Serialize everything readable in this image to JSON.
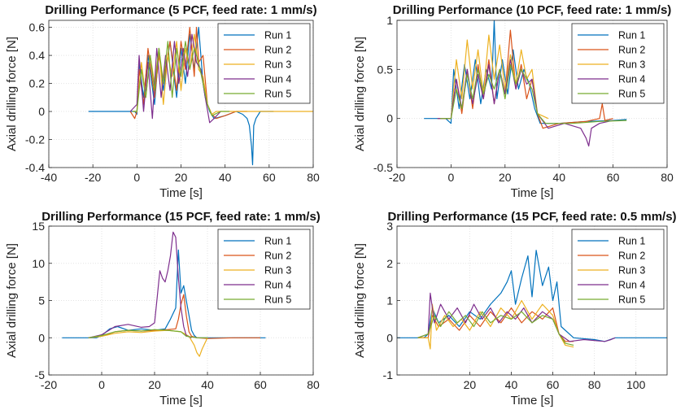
{
  "chart_data": [
    {
      "type": "line",
      "title": "Drilling Performance (5 PCF, feed rate: 1 mm/s)",
      "xlabel": "Time [s]",
      "ylabel": "Axial drilling force [N]",
      "xlim": [
        -40,
        80
      ],
      "ylim": [
        -0.4,
        0.65
      ],
      "xticks": [
        -40,
        -20,
        0,
        20,
        40,
        60,
        80
      ],
      "yticks": [
        -0.4,
        -0.2,
        0,
        0.2,
        0.4,
        0.6
      ],
      "ytick_labels": [
        "-0.4",
        "-0.2",
        "0",
        "0.2",
        "0.4",
        "0.6"
      ],
      "grid": true,
      "legend": "top-right",
      "series": [
        {
          "name": "Run 1",
          "color": "#0072BD",
          "x": [
            -22,
            -5,
            -1,
            0,
            1,
            3,
            5,
            8,
            10,
            12,
            15,
            18,
            20,
            22,
            24,
            26,
            28,
            30,
            31,
            33,
            35,
            40,
            45,
            48,
            50,
            51,
            52,
            52.5,
            53,
            54,
            56,
            60,
            62
          ],
          "y": [
            0,
            0,
            0,
            -0.02,
            0.35,
            0.1,
            0.4,
            0.05,
            0.45,
            0.15,
            0.5,
            0.1,
            0.45,
            0.2,
            0.55,
            0.3,
            0.6,
            0.2,
            0.1,
            0.0,
            -0.05,
            -0.03,
            0,
            -0.02,
            -0.05,
            -0.1,
            -0.25,
            -0.38,
            -0.1,
            -0.05,
            0,
            0,
            0
          ]
        },
        {
          "name": "Run 2",
          "color": "#D95319",
          "x": [
            -3,
            -1,
            0,
            1,
            3,
            5,
            8,
            10,
            12,
            15,
            18,
            20,
            22,
            24,
            26,
            27,
            28,
            30,
            32,
            34,
            36,
            40,
            45,
            50
          ],
          "y": [
            0,
            -0.05,
            0,
            0.3,
            0.05,
            0.45,
            0.1,
            0.4,
            0.2,
            0.5,
            0.15,
            0.5,
            0.3,
            0.6,
            0.25,
            0.6,
            0.35,
            0.4,
            0.05,
            -0.02,
            -0.05,
            -0.03,
            0,
            0
          ]
        },
        {
          "name": "Run 3",
          "color": "#EDB120",
          "x": [
            -2,
            0,
            2,
            4,
            6,
            8,
            10,
            12,
            14,
            16,
            18,
            20,
            22,
            24,
            26,
            28,
            30,
            32,
            34,
            36,
            40,
            50,
            60,
            70,
            80
          ],
          "y": [
            0,
            0,
            0.35,
            0.1,
            0.4,
            0.2,
            0.45,
            0.05,
            0.4,
            0.25,
            0.5,
            0.15,
            0.45,
            0.3,
            0.55,
            0.3,
            0.25,
            0.05,
            -0.02,
            0,
            0,
            0,
            0,
            0,
            0
          ]
        },
        {
          "name": "Run 4",
          "color": "#7E2F8E",
          "x": [
            -3,
            0,
            1,
            3,
            5,
            7,
            9,
            11,
            13,
            15,
            17,
            19,
            21,
            23,
            25,
            27,
            29,
            31,
            33,
            35,
            38
          ],
          "y": [
            0,
            0.05,
            0.4,
            0.0,
            0.35,
            -0.05,
            0.45,
            0.1,
            0.4,
            0.15,
            0.5,
            0.2,
            0.45,
            0.25,
            0.55,
            0.35,
            0.3,
            0.1,
            -0.08,
            -0.05,
            0
          ]
        },
        {
          "name": "Run 5",
          "color": "#77AC30",
          "x": [
            -2,
            0,
            2,
            4,
            6,
            8,
            10,
            12,
            14,
            16,
            18,
            20,
            22,
            24,
            26,
            28,
            30,
            32,
            34,
            38,
            42
          ],
          "y": [
            0,
            0,
            0.3,
            0.1,
            0.4,
            0.15,
            0.45,
            0.2,
            0.5,
            0.1,
            0.45,
            0.25,
            0.5,
            0.3,
            0.45,
            0.35,
            0.2,
            0.05,
            -0.03,
            0,
            0
          ]
        }
      ]
    },
    {
      "type": "line",
      "title": "Drilling Performance (10 PCF, feed rate: 1 mm/s)",
      "xlabel": "Time [s]",
      "ylabel": "Axial drilling force [N]",
      "xlim": [
        -20,
        80
      ],
      "ylim": [
        -0.5,
        1.0
      ],
      "xticks": [
        -20,
        0,
        20,
        40,
        60,
        80
      ],
      "yticks": [
        -0.5,
        0,
        0.5,
        1
      ],
      "ytick_labels": [
        "-0.5",
        "0",
        "0.5",
        "1"
      ],
      "grid": true,
      "legend": "top-right",
      "series": [
        {
          "name": "Run 1",
          "color": "#0072BD",
          "x": [
            -10,
            -2,
            0,
            1,
            3,
            5,
            7,
            9,
            11,
            13,
            15,
            16,
            17,
            19,
            21,
            23,
            25,
            27,
            29,
            31,
            33,
            40,
            50,
            60,
            65
          ],
          "y": [
            0,
            0,
            -0.05,
            0.5,
            0.1,
            0.55,
            0.2,
            0.6,
            0.15,
            0.5,
            0.3,
            1.0,
            0.2,
            0.6,
            0.25,
            0.7,
            0.3,
            0.5,
            0.35,
            0.1,
            -0.05,
            -0.05,
            -0.03,
            -0.02,
            -0.01
          ]
        },
        {
          "name": "Run 2",
          "color": "#D95319",
          "x": [
            -5,
            0,
            2,
            4,
            6,
            8,
            10,
            12,
            14,
            16,
            18,
            20,
            22,
            24,
            26,
            28,
            30,
            32,
            34,
            40,
            50,
            55,
            56,
            57,
            60
          ],
          "y": [
            0,
            0,
            0.4,
            0.05,
            0.5,
            0.1,
            0.55,
            0.2,
            0.6,
            0.15,
            0.5,
            0.25,
            0.9,
            0.3,
            0.55,
            0.2,
            0.4,
            0.05,
            -0.1,
            -0.05,
            -0.03,
            0,
            0.15,
            -0.02,
            0
          ]
        },
        {
          "name": "Run 3",
          "color": "#EDB120",
          "x": [
            -3,
            0,
            2,
            4,
            6,
            8,
            10,
            12,
            14,
            16,
            18,
            20,
            22,
            24,
            26,
            28,
            30,
            32,
            36
          ],
          "y": [
            0,
            0,
            0.6,
            0.2,
            0.8,
            0.3,
            0.7,
            0.25,
            0.85,
            0.4,
            0.75,
            0.3,
            0.65,
            0.35,
            0.7,
            0.4,
            0.5,
            0.05,
            0
          ]
        },
        {
          "name": "Run 4",
          "color": "#7E2F8E",
          "x": [
            -5,
            0,
            2,
            4,
            6,
            8,
            10,
            12,
            14,
            16,
            18,
            20,
            22,
            24,
            26,
            28,
            30,
            32,
            36,
            42,
            48,
            50,
            51,
            52,
            55,
            60
          ],
          "y": [
            0,
            0,
            0.4,
            0.1,
            0.5,
            0.15,
            0.45,
            0.2,
            0.55,
            0.15,
            0.5,
            0.25,
            0.6,
            0.3,
            0.5,
            0.35,
            0.4,
            0.05,
            -0.1,
            -0.05,
            -0.1,
            -0.2,
            -0.28,
            -0.1,
            -0.05,
            -0.02
          ]
        },
        {
          "name": "Run 5",
          "color": "#77AC30",
          "x": [
            -4,
            0,
            2,
            4,
            6,
            8,
            10,
            12,
            14,
            16,
            18,
            20,
            22,
            24,
            26,
            28,
            30,
            32,
            35,
            45,
            55,
            65
          ],
          "y": [
            0,
            0,
            0.3,
            0.1,
            0.45,
            0.2,
            0.5,
            0.25,
            0.45,
            0.3,
            0.5,
            0.2,
            0.55,
            0.35,
            0.5,
            0.4,
            0.3,
            0.05,
            -0.05,
            -0.05,
            -0.03,
            -0.02
          ]
        }
      ]
    },
    {
      "type": "line",
      "title": "Drilling Performance (15 PCF, feed rate: 1 mm/s)",
      "xlabel": "Time [s]",
      "ylabel": "Axial drilling force [N]",
      "xlim": [
        -20,
        80
      ],
      "ylim": [
        -5,
        15
      ],
      "xticks": [
        -20,
        0,
        20,
        40,
        60,
        80
      ],
      "yticks": [
        -5,
        0,
        5,
        10,
        15
      ],
      "ytick_labels": [
        "-5",
        "0",
        "5",
        "10",
        "15"
      ],
      "grid": true,
      "legend": "top-right",
      "series": [
        {
          "name": "Run 1",
          "color": "#0072BD",
          "x": [
            -15,
            -2,
            0,
            3,
            6,
            10,
            15,
            20,
            24,
            26,
            28,
            29,
            30,
            31,
            32,
            33,
            34,
            35,
            36,
            40,
            50,
            60,
            62
          ],
          "y": [
            0,
            0,
            0.3,
            1.2,
            1.5,
            1.0,
            1.2,
            1.0,
            1.2,
            2.5,
            4.0,
            11.8,
            6.0,
            7.0,
            5.0,
            3.0,
            1.0,
            0.3,
            0,
            0,
            0,
            0,
            0
          ]
        },
        {
          "name": "Run 2",
          "color": "#D95319",
          "x": [
            -5,
            0,
            5,
            10,
            15,
            20,
            25,
            28,
            29,
            30,
            31,
            32,
            33,
            34,
            36,
            40,
            50,
            60
          ],
          "y": [
            0,
            0.2,
            0.8,
            1.0,
            0.9,
            1.0,
            1.1,
            1.2,
            2.5,
            4.5,
            5.8,
            3.0,
            0.8,
            0.2,
            0,
            -0.1,
            0,
            0
          ]
        },
        {
          "name": "Run 3",
          "color": "#EDB120",
          "x": [
            -5,
            0,
            5,
            10,
            15,
            20,
            25,
            30,
            33,
            35,
            36,
            37,
            38,
            40
          ],
          "y": [
            0,
            0.2,
            0.6,
            0.8,
            0.7,
            0.9,
            1.0,
            0.8,
            0.2,
            -1.0,
            -2.0,
            -2.5,
            -1.5,
            0
          ]
        },
        {
          "name": "Run 4",
          "color": "#7E2F8E",
          "x": [
            -5,
            0,
            5,
            10,
            15,
            18,
            20,
            21,
            22,
            23,
            24,
            25,
            26,
            27,
            28,
            29,
            30,
            31,
            32,
            34
          ],
          "y": [
            0,
            0.4,
            1.5,
            1.8,
            1.4,
            1.5,
            2.0,
            5.5,
            9.0,
            8.0,
            7.5,
            9.0,
            11.0,
            14.2,
            13.5,
            8.0,
            4.0,
            1.5,
            0.3,
            0
          ]
        },
        {
          "name": "Run 5",
          "color": "#77AC30",
          "x": [
            -5,
            0,
            5,
            10,
            15,
            20,
            25,
            30,
            32,
            36,
            40
          ],
          "y": [
            0,
            0.3,
            0.8,
            1.0,
            0.9,
            1.1,
            1.0,
            0.8,
            0.2,
            0,
            0
          ]
        }
      ]
    },
    {
      "type": "line",
      "title": "Drilling Performance (15 PCF, feed rate: 0.5 mm/s)",
      "xlabel": "Time [s]",
      "ylabel": "Axial drilling force [N]",
      "xlim": [
        -15,
        115
      ],
      "ylim": [
        -1,
        3
      ],
      "xticks": [
        20,
        40,
        60,
        80,
        100
      ],
      "yticks": [
        -1,
        0,
        1,
        2,
        3
      ],
      "ytick_labels": [
        "-1",
        "0",
        "1",
        "2",
        "3"
      ],
      "grid": true,
      "legend": "top-right",
      "series": [
        {
          "name": "Run 1",
          "color": "#0072BD",
          "x": [
            -15,
            -2,
            0,
            2,
            5,
            10,
            15,
            20,
            25,
            30,
            35,
            38,
            40,
            42,
            45,
            48,
            50,
            52,
            55,
            58,
            60,
            62,
            64,
            70,
            80,
            85,
            90,
            100,
            115
          ],
          "y": [
            0,
            0,
            0.1,
            0.8,
            0.4,
            0.6,
            0.3,
            0.7,
            0.5,
            0.9,
            1.2,
            1.5,
            1.8,
            0.9,
            1.6,
            2.2,
            1.1,
            2.35,
            1.4,
            1.9,
            1.0,
            1.5,
            0.3,
            0,
            -0.05,
            -0.1,
            0,
            0,
            0
          ]
        },
        {
          "name": "Run 2",
          "color": "#D95319",
          "x": [
            -5,
            0,
            2,
            5,
            10,
            15,
            20,
            25,
            30,
            35,
            40,
            45,
            50,
            55,
            60,
            63,
            66,
            70
          ],
          "y": [
            0,
            0,
            0.6,
            0.3,
            0.5,
            0.2,
            0.6,
            0.3,
            0.7,
            0.4,
            0.8,
            0.4,
            0.7,
            0.5,
            0.8,
            0.1,
            -0.1,
            -0.1
          ]
        },
        {
          "name": "Run 3",
          "color": "#EDB120",
          "x": [
            -5,
            0,
            1,
            2,
            4,
            8,
            12,
            16,
            20,
            25,
            30,
            35,
            40,
            45,
            50,
            55,
            60,
            63,
            66,
            70
          ],
          "y": [
            0,
            0,
            -0.3,
            0.9,
            0.2,
            0.6,
            0.3,
            0.5,
            0.2,
            0.7,
            0.3,
            0.8,
            0.5,
            1.0,
            0.5,
            0.9,
            0.6,
            0.1,
            -0.2,
            -0.25
          ]
        },
        {
          "name": "Run 4",
          "color": "#7E2F8E",
          "x": [
            -5,
            0,
            1,
            3,
            6,
            10,
            14,
            18,
            22,
            26,
            30,
            34,
            38,
            42,
            46,
            50,
            55,
            60,
            63,
            68,
            75,
            85,
            88,
            90
          ],
          "y": [
            0,
            0.1,
            1.2,
            0.4,
            0.9,
            0.5,
            0.8,
            0.4,
            0.9,
            0.5,
            0.8,
            0.4,
            0.7,
            0.5,
            0.8,
            0.4,
            0.7,
            0.5,
            0.1,
            -0.1,
            -0.05,
            -0.1,
            -0.05,
            0
          ]
        },
        {
          "name": "Run 5",
          "color": "#77AC30",
          "x": [
            -5,
            0,
            3,
            6,
            10,
            14,
            18,
            22,
            26,
            30,
            35,
            40,
            45,
            50,
            55,
            60,
            63,
            66,
            70
          ],
          "y": [
            0,
            0.1,
            0.6,
            0.3,
            0.7,
            0.4,
            0.6,
            0.3,
            0.7,
            0.4,
            0.6,
            0.5,
            0.7,
            0.4,
            0.6,
            0.5,
            0.1,
            -0.15,
            -0.2
          ]
        }
      ]
    }
  ]
}
